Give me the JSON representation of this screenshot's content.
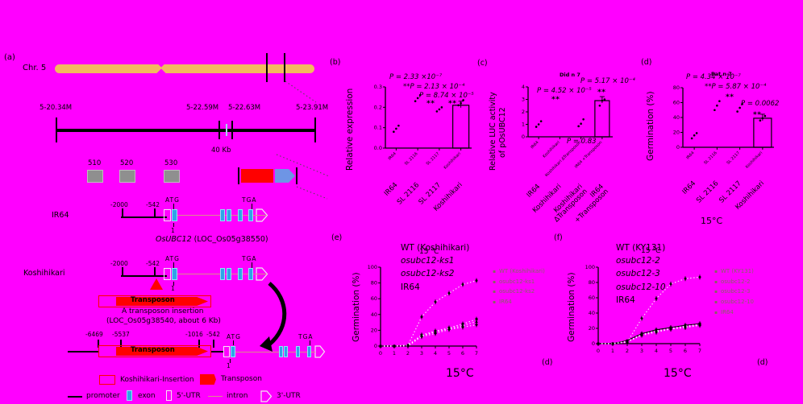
{
  "figure": {
    "background": "#ff00ff",
    "colors": {
      "chromosome": "#f3b95f",
      "gene_box_gray": "#8f8f8f",
      "red": "#ff0000",
      "gene_arrow_blue": "#6e95e5",
      "exon_blue": "#2fa3e8",
      "intron_line": "#d98c8c",
      "faint_legend_text": "#71764a"
    }
  },
  "panel_a": {
    "label": "(a)",
    "chromosome_label": "Chr. 5",
    "coords": [
      "5-20.34M",
      "5-22.59M",
      "5-22.63M",
      "5-23.91M"
    ],
    "scale_label": "40 Kb",
    "gene_ids": [
      "510",
      "520",
      "530"
    ],
    "ir64_label": "IR64",
    "koshihikari_label": "Koshihikari",
    "pos_minus2000": "-2000",
    "pos_minus542": "-542",
    "atg": "ATG",
    "tga": "TGA",
    "exon1_number": "1",
    "gene_name_italic": "OsUBC12",
    "gene_name_rest": " (LOC_Os05g38550)",
    "transposon_label": "Transposon",
    "insertion_caption_line1": "A transposon insertion",
    "insertion_caption_line2": "(LOC_Os05g38540, about 6 Kb)",
    "expanded_positions": [
      "-6469",
      "-5537",
      "-1016",
      "-542"
    ],
    "legend": {
      "koshihikari_insertion": "Koshihikari-Insertion",
      "transposon": "Transposon",
      "promoter": "promoter",
      "exon": "exon",
      "utr5": "5'-UTR",
      "intron": "intron",
      "utr3": "3'-UTR"
    }
  },
  "chart_data": [
    {
      "id": "b",
      "panel_label": "(b)",
      "type": "bar",
      "ylabel": "Relative expression",
      "categories": [
        "IR64",
        "SL 2116",
        "SL 2117",
        "Koshihikari"
      ],
      "bar_values": [
        null,
        null,
        null,
        0.21
      ],
      "scatter": [
        [
          0.08,
          0.095,
          0.11
        ],
        [
          0.23,
          0.245,
          0.26
        ],
        [
          0.18,
          0.19,
          0.2
        ],
        [
          0.21,
          0.22,
          0.235
        ]
      ],
      "ylim": [
        0,
        0.3
      ],
      "ytick_labels": [
        "0.0",
        "0.1",
        "0.2",
        "0.3"
      ],
      "annotations": [
        "P = 2.33 ×10⁻⁷",
        "**P = 2.13 × 10⁻⁴",
        "P = 8.74 × 10⁻⁵",
        "**",
        "**"
      ]
    },
    {
      "id": "c",
      "panel_label": "(c)",
      "type": "bar",
      "ylabel_lines": [
        "Relative LUC activity",
        "of pOsUBC12"
      ],
      "categories": [
        "IR64",
        "Koshihikari",
        "Koshihikari\nΔTransposon",
        "IR64\n+Transposon"
      ],
      "bar_values": [
        null,
        null,
        null,
        2.9
      ],
      "scatter": [
        [
          0.8,
          1.0,
          1.25
        ],
        [],
        [
          0.85,
          1.05,
          1.4
        ],
        [
          2.5,
          2.9,
          3.0
        ]
      ],
      "ylim": [
        0,
        4
      ],
      "ytick_labels": [
        "0",
        "1",
        "2",
        "3",
        "4"
      ],
      "annotations": [
        "Did n 7",
        "P = 5.17 × 10⁻⁴",
        "P = 4.52 × 10⁻⁵",
        "**",
        "**",
        "P = 0.83"
      ]
    },
    {
      "id": "d",
      "panel_label": "(d)",
      "type": "bar",
      "ylabel": "Germination (%)",
      "categories": [
        "IR64",
        "SL 2116",
        "SL 2117",
        "Koshihikari"
      ],
      "bar_values": [
        null,
        null,
        null,
        39
      ],
      "scatter": [
        [
          12,
          16,
          19
        ],
        [
          50,
          56,
          62
        ],
        [
          48,
          53,
          58
        ],
        [
          36,
          39,
          42
        ]
      ],
      "ylim": [
        0,
        80
      ],
      "ytick_labels": [
        "0",
        "20",
        "40",
        "60",
        "80"
      ],
      "annotations": [
        "P = 4.34 × 10⁻⁷",
        "Pat n 7",
        "**P = 5.87 × 10⁻⁴",
        "**",
        "P = 0.0062",
        "**"
      ],
      "temp": "15°C"
    },
    {
      "id": "e",
      "panel_label": "(e)",
      "type": "line",
      "ylabel": "Germination (%)",
      "x": [
        0,
        1,
        2,
        3,
        4,
        5,
        6,
        7
      ],
      "ylim": [
        0,
        100
      ],
      "ytick_labels": [
        "0",
        "20",
        "40",
        "60",
        "80",
        "100"
      ],
      "series": [
        {
          "name": "WT (Koshihikari)",
          "values": [
            0,
            0,
            1,
            37,
            56,
            67,
            78,
            83
          ]
        },
        {
          "name": "osubc12-ks1",
          "values": [
            0,
            0,
            1,
            14,
            19,
            23,
            28,
            34
          ]
        },
        {
          "name": "osubc12-ks2",
          "values": [
            0,
            0,
            1,
            13,
            18,
            22,
            26,
            31
          ]
        },
        {
          "name": "IR64",
          "values": [
            0,
            0,
            0,
            12,
            16,
            21,
            24,
            27
          ]
        }
      ],
      "temp": "15°C",
      "temp_overlay": "15 ℃",
      "corner_label": "(d)"
    },
    {
      "id": "f",
      "panel_label": "(f)",
      "type": "line",
      "ylabel": "Germination (%)",
      "x": [
        0,
        1,
        2,
        3,
        4,
        5,
        6,
        7
      ],
      "ylim": [
        0,
        100
      ],
      "ytick_labels": [
        "0",
        "20",
        "40",
        "60",
        "80",
        "100"
      ],
      "series": [
        {
          "name": "WT (KY131)",
          "values": [
            0,
            0,
            2,
            33,
            59,
            78,
            85,
            87
          ]
        },
        {
          "name": "osubc12-2",
          "values": [
            0,
            0,
            4,
            13,
            18,
            21,
            24,
            26
          ]
        },
        {
          "name": "osubc12-3",
          "values": [
            0,
            0,
            3,
            12,
            17,
            20,
            23,
            25
          ]
        },
        {
          "name": "osubc12-10",
          "values": [
            0,
            0,
            3,
            12,
            16,
            19,
            22,
            25
          ]
        },
        {
          "name": "IR64",
          "values": [
            0,
            0,
            2,
            11,
            15,
            19,
            21,
            24
          ]
        }
      ],
      "temp": "15°C",
      "temp_overlay": "15 ℃",
      "corner_label": "(d)"
    }
  ]
}
